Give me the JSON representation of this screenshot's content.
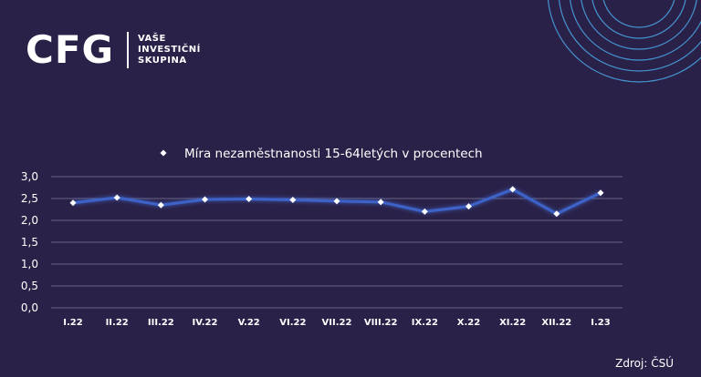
{
  "brand": {
    "logo_text": "CFG",
    "tagline": [
      "VAŠE",
      "INVESTIČNÍ",
      "SKUPINA"
    ]
  },
  "source_label": "Zdroj: ČSÚ",
  "colors": {
    "background": "#2a2148",
    "line": "#3d63c9",
    "marker": "#ffffff",
    "grid": "#6a6480",
    "text": "#ffffff"
  },
  "chart_data": {
    "type": "line",
    "categories": [
      "I.22",
      "II.22",
      "III.22",
      "IV.22",
      "V.22",
      "VI.22",
      "VII.22",
      "VIII.22",
      "IX.22",
      "X.22",
      "XI.22",
      "XII.22",
      "I.23"
    ],
    "series": [
      {
        "name": "Míra nezaměstnanosti 15-64letých v procentech",
        "values": [
          2.4,
          2.52,
          2.35,
          2.48,
          2.49,
          2.47,
          2.44,
          2.42,
          2.2,
          2.32,
          2.71,
          2.15,
          2.63
        ]
      }
    ],
    "yticks": [
      "0,0",
      "0,5",
      "1,0",
      "1,5",
      "2,0",
      "2,5",
      "3,0"
    ],
    "ylim": [
      0,
      3
    ],
    "grid": true,
    "legend_position": "top"
  }
}
